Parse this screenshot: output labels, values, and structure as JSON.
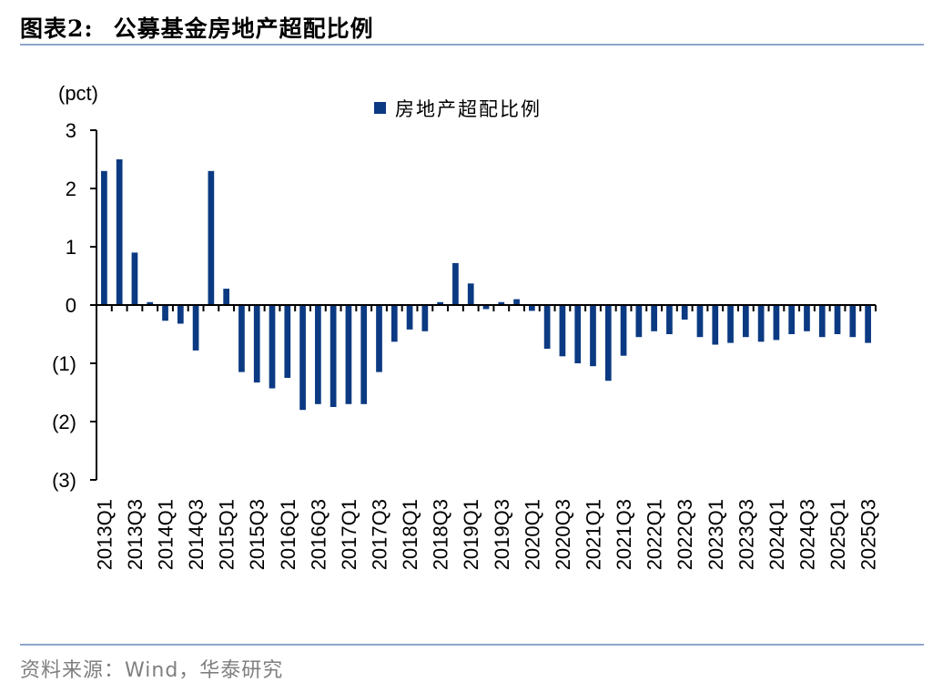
{
  "figure": {
    "title_prefix": "图表2:",
    "title": "公募基金房地产超配比例",
    "source": "资料来源：Wind，华泰研究"
  },
  "chart_data": {
    "type": "bar",
    "unit_label": "(pct)",
    "ylim": [
      -3,
      3
    ],
    "yticks": [
      3,
      2,
      1,
      0,
      -1,
      -2,
      -3
    ],
    "ytick_labels": [
      "3",
      "2",
      "1",
      "0",
      "(1)",
      "(2)",
      "(3)"
    ],
    "legend": {
      "position": "top-center"
    },
    "grid": false,
    "series": [
      {
        "name": "房地产超配比例",
        "color": "#0b3a82",
        "values": [
          2.3,
          2.5,
          0.9,
          0.05,
          -0.27,
          -0.32,
          -0.78,
          2.3,
          0.28,
          -1.15,
          -1.33,
          -1.43,
          -1.25,
          -1.8,
          -1.7,
          -1.75,
          -1.7,
          -1.7,
          -1.15,
          -0.63,
          -0.42,
          -0.45,
          0.05,
          0.72,
          0.37,
          -0.07,
          0.05,
          0.1,
          -0.1,
          -0.75,
          -0.88,
          -1.0,
          -1.05,
          -1.3,
          -0.87,
          -0.55,
          -0.45,
          -0.5,
          -0.25,
          -0.55,
          -0.68,
          -0.65,
          -0.55,
          -0.63,
          -0.6,
          -0.5,
          -0.45,
          -0.55,
          -0.5,
          -0.55,
          -0.65
        ]
      }
    ],
    "categories": [
      "2013Q1",
      "2013Q2",
      "2013Q3",
      "2013Q4",
      "2014Q1",
      "2014Q2",
      "2014Q3",
      "2014Q4",
      "2015Q1",
      "2015Q2",
      "2015Q3",
      "2015Q4",
      "2016Q1",
      "2016Q2",
      "2016Q3",
      "2016Q4",
      "2017Q1",
      "2017Q2",
      "2017Q3",
      "2017Q4",
      "2018Q1",
      "2018Q2",
      "2018Q3",
      "2018Q4",
      "2019Q1",
      "2019Q2",
      "2019Q3",
      "2019Q4",
      "2020Q1",
      "2020Q2",
      "2020Q3",
      "2020Q4",
      "2021Q1",
      "2021Q2",
      "2021Q3",
      "2021Q4",
      "2022Q1",
      "2022Q2",
      "2022Q3",
      "2022Q4",
      "2023Q1",
      "2023Q2",
      "2023Q3",
      "2023Q4",
      "2024Q1",
      "2024Q2",
      "2024Q3",
      "2024Q4",
      "2025Q1",
      "2025Q2",
      "2025Q3"
    ],
    "tick_labels": [
      "2013Q1",
      "",
      "2013Q3",
      "",
      "2014Q1",
      "",
      "2014Q3",
      "",
      "2015Q1",
      "",
      "2015Q3",
      "",
      "2016Q1",
      "",
      "2016Q3",
      "",
      "2017Q1",
      "",
      "2017Q3",
      "",
      "2018Q1",
      "",
      "2018Q3",
      "",
      "2019Q1",
      "",
      "2019Q3",
      "",
      "2020Q1",
      "",
      "2020Q3",
      "",
      "2021Q1",
      "",
      "2021Q3",
      "",
      "2022Q1",
      "",
      "2022Q3",
      "",
      "2023Q1",
      "",
      "2023Q3",
      "",
      "2024Q1",
      "",
      "2024Q3",
      "",
      "2025Q1",
      "",
      "2025Q3"
    ]
  }
}
